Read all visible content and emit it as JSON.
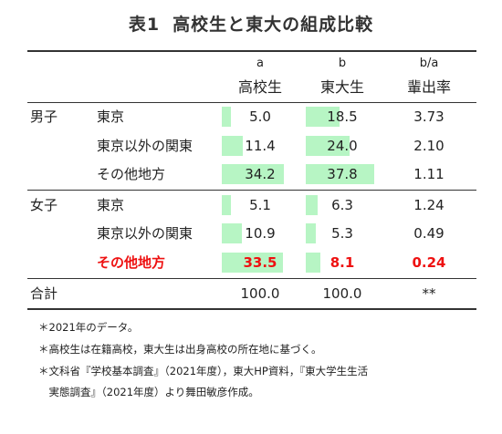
{
  "title": {
    "prefix": "表1",
    "text": "高校生と東大の組成比較"
  },
  "header": {
    "letters": [
      "a",
      "b",
      "b/a"
    ],
    "labels": [
      "高校生",
      "東大生",
      "輩出率"
    ]
  },
  "bar_color": "#b7f5c4",
  "highlight_color": "#ee1111",
  "table": {
    "groups": [
      {
        "label": "男子",
        "rows": [
          {
            "region": "東京",
            "a": "5.0",
            "b": "18.5",
            "ratio": "3.73",
            "a_val": 5.0,
            "b_val": 18.5,
            "highlight": false
          },
          {
            "region": "東京以外の関東",
            "a": "11.4",
            "b": "24.0",
            "ratio": "2.10",
            "a_val": 11.4,
            "b_val": 24.0,
            "highlight": false
          },
          {
            "region": "その他地方",
            "a": "34.2",
            "b": "37.8",
            "ratio": "1.11",
            "a_val": 34.2,
            "b_val": 37.8,
            "highlight": false
          }
        ]
      },
      {
        "label": "女子",
        "rows": [
          {
            "region": "東京",
            "a": "5.1",
            "b": "6.3",
            "ratio": "1.24",
            "a_val": 5.1,
            "b_val": 6.3,
            "highlight": false
          },
          {
            "region": "東京以外の関東",
            "a": "10.9",
            "b": "5.3",
            "ratio": "0.49",
            "a_val": 10.9,
            "b_val": 5.3,
            "highlight": false
          },
          {
            "region": "その他地方",
            "a": "33.5",
            "b": "8.1",
            "ratio": "0.24",
            "a_val": 33.5,
            "b_val": 8.1,
            "highlight": true
          }
        ]
      }
    ],
    "total": {
      "label": "合計",
      "a": "100.0",
      "b": "100.0",
      "ratio": "**"
    },
    "bar_scale_max": 37.8
  },
  "notes": [
    "＊2021年のデータ。",
    "＊高校生は在籍高校，東大生は出身高校の所在地に基づく。",
    "＊文科省『学校基本調査』（2021年度），東大HP資料，『東大学生生活",
    "　実態調査』（2021年度）より舞田敏彦作成。"
  ]
}
